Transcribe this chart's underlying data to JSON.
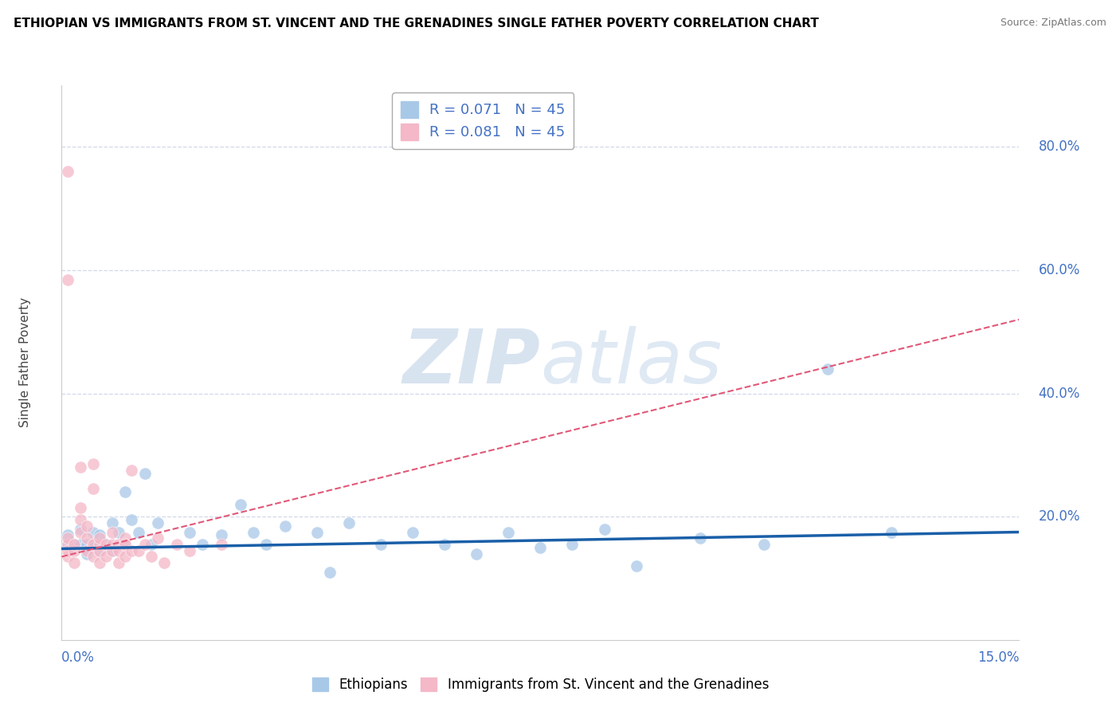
{
  "title": "ETHIOPIAN VS IMMIGRANTS FROM ST. VINCENT AND THE GRENADINES SINGLE FATHER POVERTY CORRELATION CHART",
  "source": "Source: ZipAtlas.com",
  "ylabel": "Single Father Poverty",
  "xmin": 0.0,
  "xmax": 0.15,
  "ymin": 0.0,
  "ymax": 0.9,
  "right_ytick_vals": [
    0.2,
    0.4,
    0.6,
    0.8
  ],
  "right_yticklabels": [
    "20.0%",
    "40.0%",
    "60.0%",
    "80.0%"
  ],
  "legend_entries": [
    {
      "label": "R = 0.071   N = 45",
      "color": "#a8c8e8"
    },
    {
      "label": "R = 0.081   N = 45",
      "color": "#f4b8c8"
    }
  ],
  "legend_bottom": [
    "Ethiopians",
    "Immigrants from St. Vincent and the Grenadines"
  ],
  "legend_bottom_colors": [
    "#a8c8e8",
    "#f4b8c8"
  ],
  "watermark": "ZIPatlas",
  "blue_scatter_x": [
    0.001,
    0.001,
    0.002,
    0.003,
    0.003,
    0.004,
    0.004,
    0.005,
    0.005,
    0.006,
    0.006,
    0.007,
    0.008,
    0.008,
    0.009,
    0.01,
    0.01,
    0.011,
    0.012,
    0.013,
    0.014,
    0.015,
    0.02,
    0.022,
    0.025,
    0.028,
    0.03,
    0.032,
    0.035,
    0.04,
    0.042,
    0.045,
    0.05,
    0.055,
    0.06,
    0.065,
    0.07,
    0.075,
    0.08,
    0.085,
    0.09,
    0.1,
    0.11,
    0.12,
    0.13
  ],
  "blue_scatter_y": [
    0.17,
    0.155,
    0.155,
    0.155,
    0.18,
    0.155,
    0.14,
    0.175,
    0.155,
    0.145,
    0.17,
    0.155,
    0.145,
    0.19,
    0.175,
    0.155,
    0.24,
    0.195,
    0.175,
    0.27,
    0.155,
    0.19,
    0.175,
    0.155,
    0.17,
    0.22,
    0.175,
    0.155,
    0.185,
    0.175,
    0.11,
    0.19,
    0.155,
    0.175,
    0.155,
    0.14,
    0.175,
    0.15,
    0.155,
    0.18,
    0.12,
    0.165,
    0.155,
    0.44,
    0.175
  ],
  "pink_scatter_x": [
    0.001,
    0.001,
    0.001,
    0.001,
    0.001,
    0.002,
    0.002,
    0.002,
    0.003,
    0.003,
    0.003,
    0.003,
    0.004,
    0.004,
    0.004,
    0.005,
    0.005,
    0.005,
    0.005,
    0.006,
    0.006,
    0.006,
    0.006,
    0.007,
    0.007,
    0.008,
    0.008,
    0.008,
    0.009,
    0.009,
    0.009,
    0.01,
    0.01,
    0.01,
    0.011,
    0.011,
    0.012,
    0.013,
    0.014,
    0.015,
    0.016,
    0.018,
    0.02,
    0.025,
    0.001
  ],
  "pink_scatter_y": [
    0.76,
    0.155,
    0.135,
    0.165,
    0.145,
    0.145,
    0.125,
    0.155,
    0.175,
    0.195,
    0.215,
    0.28,
    0.165,
    0.145,
    0.185,
    0.245,
    0.285,
    0.135,
    0.155,
    0.155,
    0.165,
    0.125,
    0.145,
    0.155,
    0.135,
    0.155,
    0.175,
    0.145,
    0.155,
    0.125,
    0.145,
    0.165,
    0.155,
    0.135,
    0.275,
    0.145,
    0.145,
    0.155,
    0.135,
    0.165,
    0.125,
    0.155,
    0.145,
    0.155,
    0.585
  ],
  "blue_trend_x": [
    0.0,
    0.15
  ],
  "blue_trend_y": [
    0.148,
    0.175
  ],
  "pink_trend_x": [
    0.0,
    0.15
  ],
  "pink_trend_y": [
    0.135,
    0.52
  ],
  "title_color": "#000000",
  "source_color": "#777777",
  "blue_color": "#a8c8e8",
  "pink_color": "#f4b8c8",
  "blue_trend_color": "#1a5fa8",
  "pink_trend_color": "#e05878",
  "watermark_color_hex": "#c8d8ec",
  "grid_color": "#d0d8e8",
  "axis_label_color": "#4472c4",
  "right_axis_color": "#4472c4"
}
